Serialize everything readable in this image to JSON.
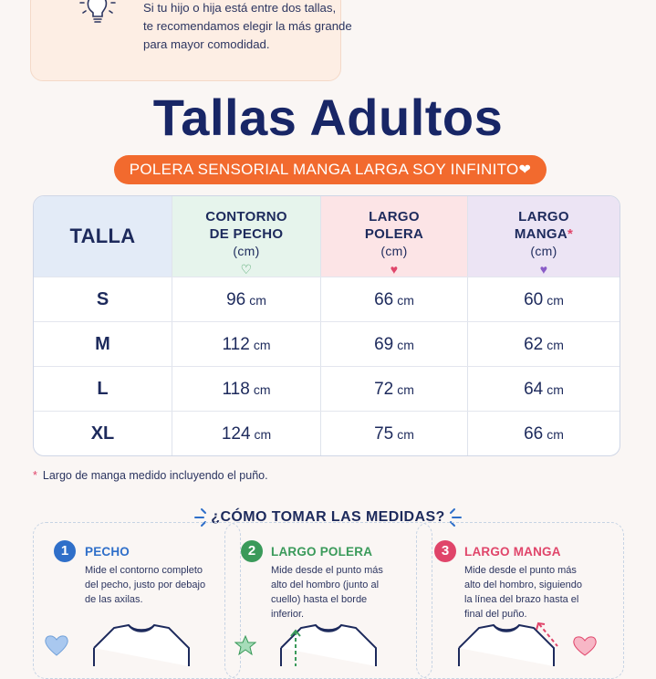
{
  "tip": {
    "lines": [
      "Si tu hijo o hija está entre dos tallas,",
      "te recomendamos elegir la más grande",
      "para mayor comodidad."
    ],
    "icon": "lightbulb-icon"
  },
  "title": "Tallas Adultos",
  "subtitle": "POLERA SENSORIAL MANGA LARGA SOY INFINITO",
  "subtitle_heart": "❤",
  "table": {
    "headers": {
      "talla": "TALLA",
      "pecho": [
        "CONTORNO",
        "DE PECHO",
        "(cm)"
      ],
      "polera": [
        "LARGO",
        "POLERA",
        "(cm)"
      ],
      "manga": [
        "LARGO",
        "MANGA",
        "(cm)"
      ],
      "manga_star": "*",
      "heart": "♥",
      "heart_outline": "♡"
    },
    "unit": "cm",
    "rows": [
      {
        "size": "S",
        "pecho": "96",
        "polera": "66",
        "manga": "60"
      },
      {
        "size": "M",
        "pecho": "112",
        "polera": "69",
        "manga": "62"
      },
      {
        "size": "L",
        "pecho": "118",
        "polera": "72",
        "manga": "64"
      },
      {
        "size": "XL",
        "pecho": "124",
        "polera": "75",
        "manga": "66"
      }
    ]
  },
  "footnote": {
    "star": "*",
    "text": "Largo de manga medido incluyendo el puño."
  },
  "howto": {
    "title": "¿CÓMO TOMAR LAS MEDIDAS?",
    "steps": [
      {
        "num": "1",
        "title": "PECHO",
        "color": "#2f6fc9",
        "lines": [
          "Mide el contorno completo",
          "del pecho, justo por debajo",
          "de las axilas."
        ]
      },
      {
        "num": "2",
        "title": "LARGO POLERA",
        "color": "#3a9a5a",
        "lines": [
          "Mide desde el punto más",
          "alto del hombro (junto al",
          "cuello) hasta el borde",
          "inferior."
        ]
      },
      {
        "num": "3",
        "title": "LARGO MANGA",
        "color": "#e0456a",
        "lines": [
          "Mide desde el punto más",
          "alto del hombro, siguiendo",
          "la línea del brazo hasta el",
          "final del puño."
        ]
      }
    ]
  },
  "colors": {
    "navy": "#182666",
    "orange": "#f26a2e",
    "green": "#3a9a5a",
    "pink": "#e0456a",
    "purple": "#8a5cc7",
    "blue": "#2f6fc9"
  }
}
